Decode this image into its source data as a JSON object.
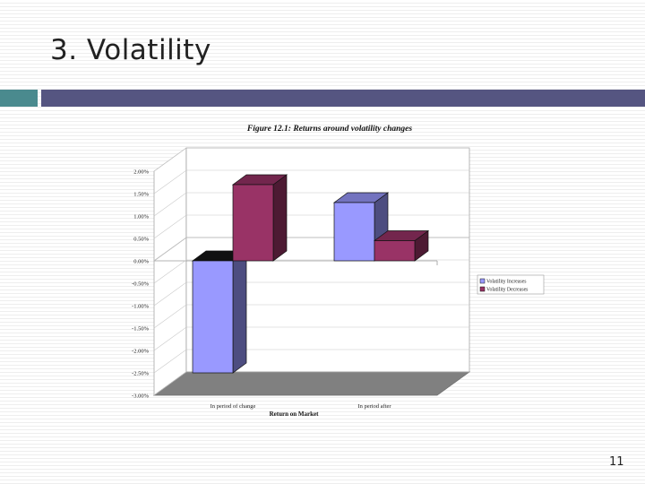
{
  "slide": {
    "title": "3. Volatility",
    "page_number": "11",
    "accent_color": "#4a8a8e",
    "bar_color": "#555581"
  },
  "chart_data": {
    "type": "bar",
    "title": "Figure 12.1: Returns around volatility changes",
    "xlabel": "Return on Market",
    "ylabel": "",
    "categories": [
      "In period of change",
      "In period after"
    ],
    "series": [
      {
        "name": "Volatility Increases",
        "values": [
          -2.5,
          1.3
        ],
        "color": "#9999ff"
      },
      {
        "name": "Volatility Decreases",
        "values": [
          1.7,
          0.45
        ],
        "color": "#993366"
      }
    ],
    "y_ticks": [
      "2.00%",
      "1.50%",
      "1.00%",
      "0.50%",
      "0.00%",
      "-0.50%",
      "-1.00%",
      "-1.50%",
      "-2.00%",
      "-2.50%",
      "-3.00%"
    ],
    "ylim": [
      -3.0,
      2.0
    ],
    "grid": true,
    "legend_position": "right",
    "style": "3d"
  }
}
